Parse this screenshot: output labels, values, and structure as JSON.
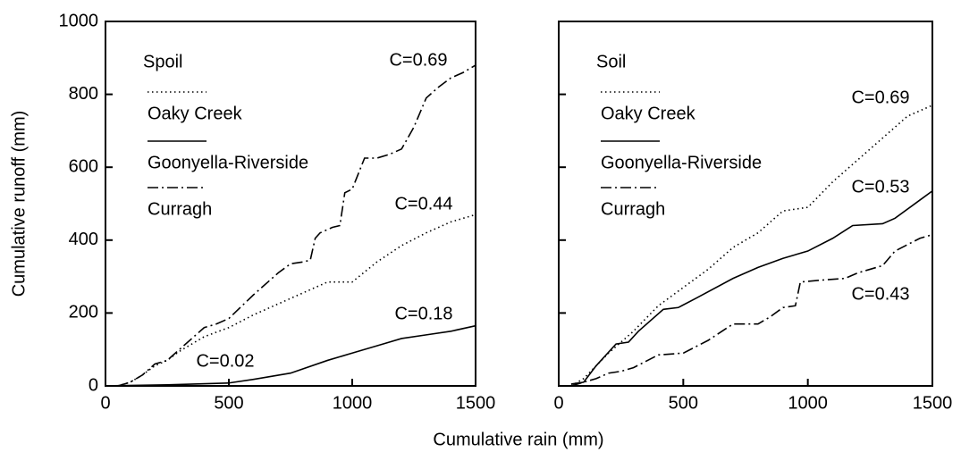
{
  "chart_data": [
    {
      "type": "line",
      "legend_title": "Spoil",
      "ylabel": "Cumulative runoff (mm)",
      "xlabel": "Cumulative rain (mm)",
      "xlim": [
        0,
        1500
      ],
      "ylim": [
        0,
        1000
      ],
      "xticks": [
        0,
        500,
        1000,
        1500
      ],
      "yticks": [
        0,
        200,
        400,
        600,
        800,
        1000
      ],
      "show_ytick_labels": true,
      "series": [
        {
          "name": "Oaky Creek",
          "color": "#000000",
          "style": "dotted",
          "x": [
            50,
            100,
            150,
            200,
            250,
            300,
            400,
            500,
            600,
            700,
            800,
            900,
            1000,
            1100,
            1200,
            1300,
            1400,
            1500
          ],
          "values": [
            0,
            10,
            30,
            55,
            70,
            95,
            135,
            160,
            195,
            225,
            255,
            285,
            285,
            340,
            385,
            420,
            450,
            470
          ]
        },
        {
          "name": "Goonyella-Riverside",
          "color": "#000000",
          "style": "solid",
          "x": [
            0,
            250,
            500,
            600,
            750,
            900,
            1000,
            1100,
            1200,
            1300,
            1400,
            1500
          ],
          "values": [
            0,
            3,
            8,
            18,
            35,
            70,
            90,
            110,
            130,
            140,
            150,
            165
          ]
        },
        {
          "name": "Curragh",
          "color": "#000000",
          "style": "dashdot",
          "x": [
            50,
            100,
            150,
            200,
            250,
            300,
            400,
            450,
            500,
            600,
            700,
            750,
            800,
            830,
            850,
            870,
            920,
            950,
            970,
            1000,
            1050,
            1100,
            1150,
            1200,
            1250,
            1300,
            1350,
            1400,
            1450,
            1500
          ],
          "values": [
            0,
            10,
            30,
            60,
            70,
            100,
            160,
            170,
            185,
            250,
            310,
            335,
            340,
            345,
            405,
            420,
            435,
            440,
            530,
            540,
            625,
            625,
            635,
            650,
            710,
            790,
            820,
            845,
            860,
            880
          ]
        }
      ],
      "annotations": [
        "C=0.69",
        "C=0.44",
        "C=0.18",
        "C=0.02"
      ]
    },
    {
      "type": "line",
      "legend_title": "Soil",
      "xlim": [
        0,
        1500
      ],
      "ylim": [
        0,
        1000
      ],
      "xticks": [
        0,
        500,
        1000,
        1500
      ],
      "yticks": [
        0,
        200,
        400,
        600,
        800,
        1000
      ],
      "show_ytick_labels": false,
      "series": [
        {
          "name": "Oaky Creek",
          "color": "#000000",
          "style": "dotted",
          "x": [
            50,
            100,
            200,
            300,
            400,
            500,
            600,
            700,
            800,
            900,
            1000,
            1100,
            1200,
            1300,
            1400,
            1500
          ],
          "values": [
            0,
            20,
            90,
            150,
            220,
            270,
            320,
            380,
            420,
            480,
            490,
            560,
            620,
            680,
            740,
            770
          ]
        },
        {
          "name": "Goonyella-Riverside",
          "color": "#000000",
          "style": "solid",
          "x": [
            50,
            100,
            150,
            230,
            280,
            320,
            420,
            480,
            550,
            700,
            800,
            900,
            1000,
            1100,
            1180,
            1300,
            1350,
            1450,
            1500
          ],
          "values": [
            5,
            10,
            55,
            115,
            120,
            150,
            210,
            215,
            240,
            295,
            325,
            350,
            370,
            405,
            440,
            445,
            460,
            510,
            535
          ]
        },
        {
          "name": "Curragh",
          "color": "#000000",
          "style": "dashdot",
          "x": [
            50,
            100,
            150,
            200,
            250,
            300,
            400,
            500,
            600,
            700,
            800,
            850,
            900,
            950,
            970,
            1050,
            1150,
            1200,
            1300,
            1350,
            1450,
            1500
          ],
          "values": [
            0,
            10,
            20,
            35,
            40,
            50,
            85,
            90,
            125,
            170,
            170,
            190,
            215,
            220,
            285,
            290,
            295,
            310,
            330,
            370,
            405,
            415
          ]
        }
      ],
      "annotations": [
        "C=0.69",
        "C=0.53",
        "C=0.43"
      ]
    }
  ]
}
